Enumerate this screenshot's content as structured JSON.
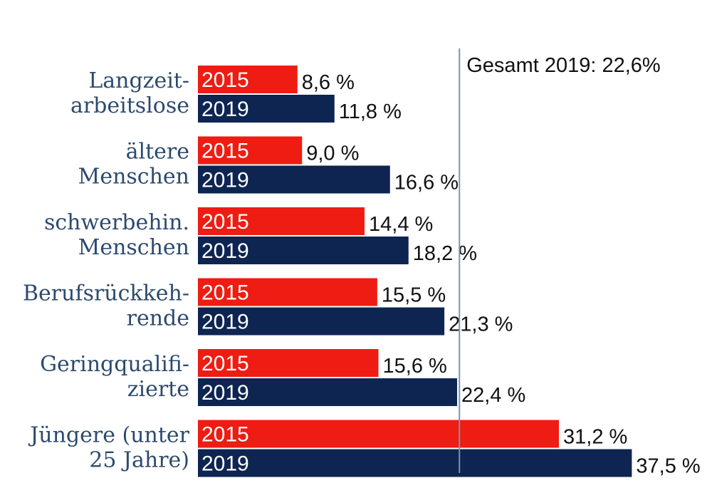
{
  "chart_data": {
    "type": "bar",
    "orientation": "horizontal",
    "categories": [
      [
        "Langzeit-",
        "arbeitslose"
      ],
      [
        "ältere",
        "Menschen"
      ],
      [
        "schwerbehin.",
        "Menschen"
      ],
      [
        "Berufsrückkeh-",
        "rende"
      ],
      [
        "Geringqualifi-",
        "zierte"
      ],
      [
        "Jüngere (unter",
        "25 Jahre)"
      ]
    ],
    "series": [
      {
        "name": "2015",
        "color": "#ee1c12",
        "values": [
          8.6,
          9.0,
          14.4,
          15.5,
          15.6,
          31.2
        ],
        "labels": [
          "8,6 %",
          "9,0 %",
          "14,4 %",
          "15,5 %",
          "15,6 %",
          "31,2 %"
        ]
      },
      {
        "name": "2019",
        "color": "#0e2552",
        "values": [
          11.8,
          16.6,
          18.2,
          21.3,
          22.4,
          37.5
        ],
        "labels": [
          "11,8 %",
          "16,6 %",
          "18,2 %",
          "21,3 %",
          "22,4 %",
          "37,5 %"
        ]
      }
    ],
    "reference_line": {
      "value": 22.6,
      "label": "Gesamt 2019: 22,6%",
      "color": "#7f93ad"
    },
    "xlim": [
      0,
      37.5
    ],
    "grid": false,
    "legend": "none"
  }
}
